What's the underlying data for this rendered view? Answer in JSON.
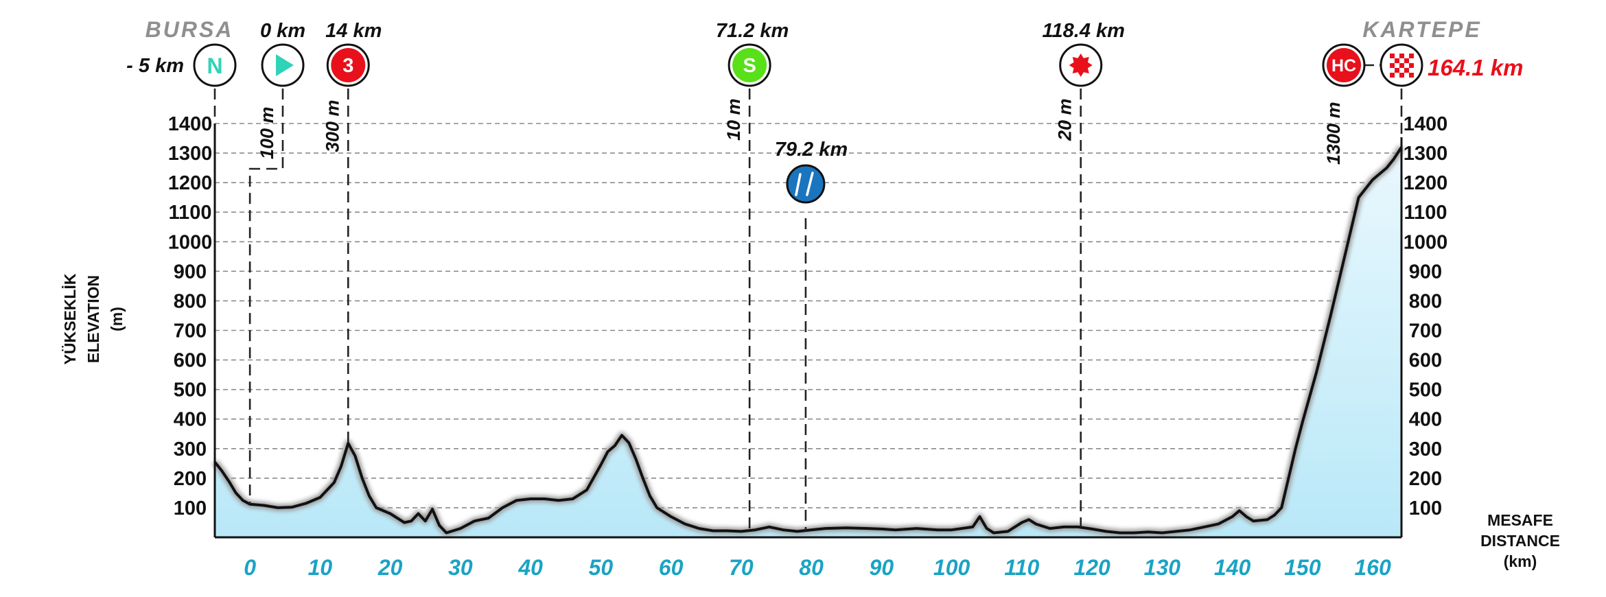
{
  "chart_data": {
    "type": "area",
    "title": "",
    "ylabel_lines": [
      "YÜKSEKLİK",
      "ELEVATION",
      "(m)"
    ],
    "xlabel_lines": [
      "MESAFE",
      "DISTANCE",
      "(km)"
    ],
    "xlim": [
      -5,
      164.1
    ],
    "ylim": [
      0,
      1400
    ],
    "x_ticks": [
      0,
      10,
      20,
      30,
      40,
      50,
      60,
      70,
      80,
      90,
      100,
      110,
      120,
      130,
      140,
      150,
      160
    ],
    "y_ticks": [
      100,
      200,
      300,
      400,
      500,
      600,
      700,
      800,
      900,
      1000,
      1100,
      1200,
      1300,
      1400
    ],
    "grid": true,
    "fill_color": "#c6ecf9",
    "line_color": "#111111",
    "x_tick_color": "#1aa3c4",
    "start_town": "BURSA",
    "finish_town": "KARTEPE",
    "profile": [
      [
        -5,
        255
      ],
      [
        -4,
        225
      ],
      [
        -3,
        190
      ],
      [
        -2,
        150
      ],
      [
        -1,
        125
      ],
      [
        0,
        112
      ],
      [
        2,
        108
      ],
      [
        4,
        100
      ],
      [
        6,
        102
      ],
      [
        8,
        115
      ],
      [
        10,
        135
      ],
      [
        12,
        185
      ],
      [
        13,
        240
      ],
      [
        14,
        318
      ],
      [
        15,
        275
      ],
      [
        16,
        200
      ],
      [
        17,
        140
      ],
      [
        18,
        100
      ],
      [
        20,
        80
      ],
      [
        22,
        50
      ],
      [
        23,
        55
      ],
      [
        24,
        80
      ],
      [
        25,
        55
      ],
      [
        26,
        95
      ],
      [
        27,
        40
      ],
      [
        28,
        15
      ],
      [
        30,
        30
      ],
      [
        32,
        55
      ],
      [
        34,
        65
      ],
      [
        36,
        100
      ],
      [
        38,
        125
      ],
      [
        40,
        130
      ],
      [
        42,
        130
      ],
      [
        44,
        125
      ],
      [
        46,
        130
      ],
      [
        48,
        160
      ],
      [
        50,
        245
      ],
      [
        51,
        290
      ],
      [
        52,
        310
      ],
      [
        53,
        345
      ],
      [
        54,
        320
      ],
      [
        55,
        265
      ],
      [
        56,
        200
      ],
      [
        57,
        140
      ],
      [
        58,
        100
      ],
      [
        60,
        70
      ],
      [
        62,
        45
      ],
      [
        64,
        30
      ],
      [
        66,
        22
      ],
      [
        68,
        22
      ],
      [
        70,
        20
      ],
      [
        72,
        25
      ],
      [
        74,
        35
      ],
      [
        76,
        25
      ],
      [
        78,
        20
      ],
      [
        80,
        25
      ],
      [
        82,
        30
      ],
      [
        85,
        32
      ],
      [
        88,
        30
      ],
      [
        90,
        28
      ],
      [
        92,
        25
      ],
      [
        95,
        30
      ],
      [
        98,
        25
      ],
      [
        100,
        25
      ],
      [
        103,
        35
      ],
      [
        104,
        70
      ],
      [
        105,
        30
      ],
      [
        106,
        15
      ],
      [
        108,
        20
      ],
      [
        110,
        50
      ],
      [
        111,
        60
      ],
      [
        112,
        45
      ],
      [
        114,
        30
      ],
      [
        116,
        35
      ],
      [
        118,
        35
      ],
      [
        120,
        28
      ],
      [
        122,
        20
      ],
      [
        124,
        15
      ],
      [
        126,
        15
      ],
      [
        128,
        18
      ],
      [
        130,
        15
      ],
      [
        132,
        20
      ],
      [
        134,
        25
      ],
      [
        136,
        35
      ],
      [
        138,
        45
      ],
      [
        140,
        70
      ],
      [
        141,
        90
      ],
      [
        142,
        70
      ],
      [
        143,
        55
      ],
      [
        145,
        60
      ],
      [
        146,
        75
      ],
      [
        147,
        100
      ],
      [
        148,
        200
      ],
      [
        149,
        300
      ],
      [
        150,
        390
      ],
      [
        152,
        560
      ],
      [
        154,
        750
      ],
      [
        156,
        950
      ],
      [
        158,
        1150
      ],
      [
        160,
        1210
      ],
      [
        162,
        1250
      ],
      [
        163,
        1280
      ],
      [
        164.1,
        1320
      ]
    ],
    "markers": [
      {
        "type": "neutral-start",
        "symbol": "N",
        "km": -5,
        "km_label": "- 5 km",
        "color": "#2fd3b7"
      },
      {
        "type": "start",
        "km": 0,
        "km_label": "0 km",
        "alt_label": "100 m",
        "color": "#2fd3b7"
      },
      {
        "type": "climb-cat-3",
        "symbol": "3",
        "km": 14,
        "km_label": "14 km",
        "alt_label": "300 m",
        "color": "#e8101b"
      },
      {
        "type": "sprint",
        "symbol": "S",
        "km": 71.2,
        "km_label": "71.2 km",
        "alt_label": "10 m",
        "color": "#58e018"
      },
      {
        "type": "feed-zone",
        "km": 79.2,
        "km_label": "79.2 km",
        "color": "#1b75be"
      },
      {
        "type": "bonus-sprint",
        "km": 118.4,
        "km_label": "118.4 km",
        "alt_label": "20 m",
        "color": "#e8101b"
      },
      {
        "type": "climb-hc",
        "symbol": "HC",
        "km": 154.2,
        "alt_label": "1300 m",
        "color": "#e8101b"
      },
      {
        "type": "finish",
        "km": 164.1,
        "km_label": "164.1 km",
        "color": "#e8101b"
      }
    ]
  }
}
